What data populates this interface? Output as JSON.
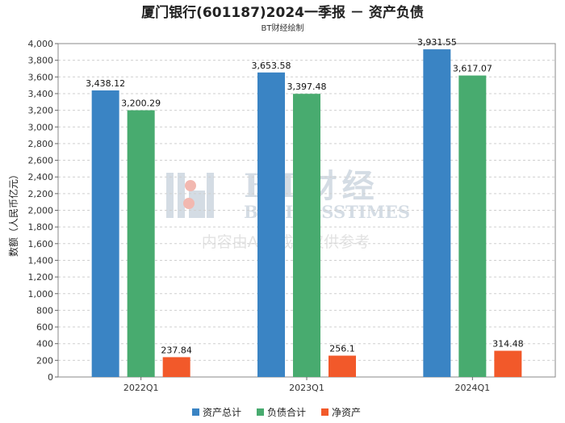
{
  "chart_data": {
    "type": "bar",
    "title": "厦门银行(601187)2024一季报 － 资产负债",
    "subtitle": "BT财经绘制",
    "ylabel": "数额（人民币亿元）",
    "xlabel": "",
    "categories": [
      "2022Q1",
      "2023Q1",
      "2024Q1"
    ],
    "series": [
      {
        "name": "资产总计",
        "color": "#3a84c4",
        "values": [
          3438.12,
          3653.58,
          3931.55
        ],
        "labels": [
          "3,438.12",
          "3,653.58",
          "3,931.55"
        ]
      },
      {
        "name": "负债合计",
        "color": "#48ab6f",
        "values": [
          3200.29,
          3397.48,
          3617.07
        ],
        "labels": [
          "3,200.29",
          "3,397.48",
          "3,617.07"
        ]
      },
      {
        "name": "净资产",
        "color": "#f2592a",
        "values": [
          237.84,
          256.1,
          314.48
        ],
        "labels": [
          "237.84",
          "256.1",
          "314.48"
        ]
      }
    ],
    "ylim": [
      0,
      4000
    ],
    "yticks": [
      0,
      200,
      400,
      600,
      800,
      1000,
      1200,
      1400,
      1600,
      1800,
      2000,
      2200,
      2400,
      2600,
      2800,
      3000,
      3200,
      3400,
      3600,
      3800,
      4000
    ],
    "grid": true,
    "legend": "bottom"
  },
  "watermark": {
    "line1": "BT财经",
    "line2": "BUSINESSTIMES",
    "line3": "内容由AI生成，仅供参考"
  }
}
